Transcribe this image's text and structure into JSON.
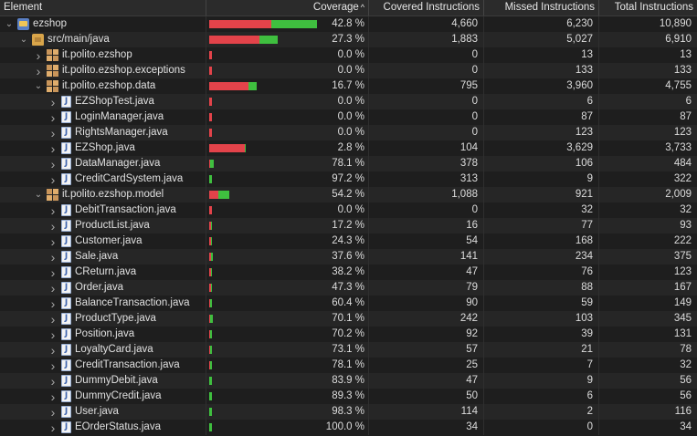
{
  "header": {
    "element": "Element",
    "coverage": "Coverage",
    "covered": "Covered Instructions",
    "missed": "Missed Instructions",
    "total": "Total Instructions",
    "sort_indicator": "^"
  },
  "colors": {
    "missed": "#e3434a",
    "covered": "#3fbf3f",
    "background": "#1e1e1e"
  },
  "max_total": 10890,
  "rows": [
    {
      "level": 0,
      "twisty": "v",
      "icon": "project-icon",
      "name": "ezshop",
      "coverage": "42.8 %",
      "covered": "4,660",
      "missed": "6,230",
      "total": "10,890",
      "c": 4660,
      "m": 6230
    },
    {
      "level": 1,
      "twisty": "v",
      "icon": "source-folder-icon",
      "name": "src/main/java",
      "coverage": "27.3 %",
      "covered": "1,883",
      "missed": "5,027",
      "total": "6,910",
      "c": 1883,
      "m": 5027
    },
    {
      "level": 2,
      "twisty": ">",
      "icon": "package-icon",
      "name": "it.polito.ezshop",
      "coverage": "0.0 %",
      "covered": "0",
      "missed": "13",
      "total": "13",
      "c": 0,
      "m": 13
    },
    {
      "level": 2,
      "twisty": ">",
      "icon": "package-icon",
      "name": "it.polito.ezshop.exceptions",
      "coverage": "0.0 %",
      "covered": "0",
      "missed": "133",
      "total": "133",
      "c": 0,
      "m": 133
    },
    {
      "level": 2,
      "twisty": "v",
      "icon": "package-icon",
      "name": "it.polito.ezshop.data",
      "coverage": "16.7 %",
      "covered": "795",
      "missed": "3,960",
      "total": "4,755",
      "c": 795,
      "m": 3960
    },
    {
      "level": 3,
      "twisty": ">",
      "icon": "java-file-icon",
      "name": "EZShopTest.java",
      "coverage": "0.0 %",
      "covered": "0",
      "missed": "6",
      "total": "6",
      "c": 0,
      "m": 6
    },
    {
      "level": 3,
      "twisty": ">",
      "icon": "java-file-icon",
      "name": "LoginManager.java",
      "coverage": "0.0 %",
      "covered": "0",
      "missed": "87",
      "total": "87",
      "c": 0,
      "m": 87
    },
    {
      "level": 3,
      "twisty": ">",
      "icon": "java-file-icon",
      "name": "RightsManager.java",
      "coverage": "0.0 %",
      "covered": "0",
      "missed": "123",
      "total": "123",
      "c": 0,
      "m": 123
    },
    {
      "level": 3,
      "twisty": ">",
      "icon": "java-file-icon",
      "name": "EZShop.java",
      "coverage": "2.8 %",
      "covered": "104",
      "missed": "3,629",
      "total": "3,733",
      "c": 104,
      "m": 3629
    },
    {
      "level": 3,
      "twisty": ">",
      "icon": "java-file-icon",
      "name": "DataManager.java",
      "coverage": "78.1 %",
      "covered": "378",
      "missed": "106",
      "total": "484",
      "c": 378,
      "m": 106
    },
    {
      "level": 3,
      "twisty": ">",
      "icon": "java-file-icon",
      "name": "CreditCardSystem.java",
      "coverage": "97.2 %",
      "covered": "313",
      "missed": "9",
      "total": "322",
      "c": 313,
      "m": 9
    },
    {
      "level": 2,
      "twisty": "v",
      "icon": "package-icon",
      "name": "it.polito.ezshop.model",
      "coverage": "54.2 %",
      "covered": "1,088",
      "missed": "921",
      "total": "2,009",
      "c": 1088,
      "m": 921
    },
    {
      "level": 3,
      "twisty": ">",
      "icon": "java-file-icon",
      "name": "DebitTransaction.java",
      "coverage": "0.0 %",
      "covered": "0",
      "missed": "32",
      "total": "32",
      "c": 0,
      "m": 32
    },
    {
      "level": 3,
      "twisty": ">",
      "icon": "java-file-icon",
      "name": "ProductList.java",
      "coverage": "17.2 %",
      "covered": "16",
      "missed": "77",
      "total": "93",
      "c": 16,
      "m": 77
    },
    {
      "level": 3,
      "twisty": ">",
      "icon": "java-file-icon",
      "name": "Customer.java",
      "coverage": "24.3 %",
      "covered": "54",
      "missed": "168",
      "total": "222",
      "c": 54,
      "m": 168
    },
    {
      "level": 3,
      "twisty": ">",
      "icon": "java-file-icon",
      "name": "Sale.java",
      "coverage": "37.6 %",
      "covered": "141",
      "missed": "234",
      "total": "375",
      "c": 141,
      "m": 234
    },
    {
      "level": 3,
      "twisty": ">",
      "icon": "java-file-icon",
      "name": "CReturn.java",
      "coverage": "38.2 %",
      "covered": "47",
      "missed": "76",
      "total": "123",
      "c": 47,
      "m": 76
    },
    {
      "level": 3,
      "twisty": ">",
      "icon": "java-file-icon",
      "name": "Order.java",
      "coverage": "47.3 %",
      "covered": "79",
      "missed": "88",
      "total": "167",
      "c": 79,
      "m": 88
    },
    {
      "level": 3,
      "twisty": ">",
      "icon": "java-file-icon",
      "name": "BalanceTransaction.java",
      "coverage": "60.4 %",
      "covered": "90",
      "missed": "59",
      "total": "149",
      "c": 90,
      "m": 59
    },
    {
      "level": 3,
      "twisty": ">",
      "icon": "java-file-icon",
      "name": "ProductType.java",
      "coverage": "70.1 %",
      "covered": "242",
      "missed": "103",
      "total": "345",
      "c": 242,
      "m": 103
    },
    {
      "level": 3,
      "twisty": ">",
      "icon": "java-file-icon",
      "name": "Position.java",
      "coverage": "70.2 %",
      "covered": "92",
      "missed": "39",
      "total": "131",
      "c": 92,
      "m": 39
    },
    {
      "level": 3,
      "twisty": ">",
      "icon": "java-file-icon",
      "name": "LoyaltyCard.java",
      "coverage": "73.1 %",
      "covered": "57",
      "missed": "21",
      "total": "78",
      "c": 57,
      "m": 21
    },
    {
      "level": 3,
      "twisty": ">",
      "icon": "java-file-icon",
      "name": "CreditTransaction.java",
      "coverage": "78.1 %",
      "covered": "25",
      "missed": "7",
      "total": "32",
      "c": 25,
      "m": 7
    },
    {
      "level": 3,
      "twisty": ">",
      "icon": "java-file-icon",
      "name": "DummyDebit.java",
      "coverage": "83.9 %",
      "covered": "47",
      "missed": "9",
      "total": "56",
      "c": 47,
      "m": 9
    },
    {
      "level": 3,
      "twisty": ">",
      "icon": "java-file-icon",
      "name": "DummyCredit.java",
      "coverage": "89.3 %",
      "covered": "50",
      "missed": "6",
      "total": "56",
      "c": 50,
      "m": 6
    },
    {
      "level": 3,
      "twisty": ">",
      "icon": "java-file-icon",
      "name": "User.java",
      "coverage": "98.3 %",
      "covered": "114",
      "missed": "2",
      "total": "116",
      "c": 114,
      "m": 2
    },
    {
      "level": 3,
      "twisty": ">",
      "icon": "java-file-icon",
      "name": "EOrderStatus.java",
      "coverage": "100.0 %",
      "covered": "34",
      "missed": "0",
      "total": "34",
      "c": 34,
      "m": 0
    }
  ]
}
